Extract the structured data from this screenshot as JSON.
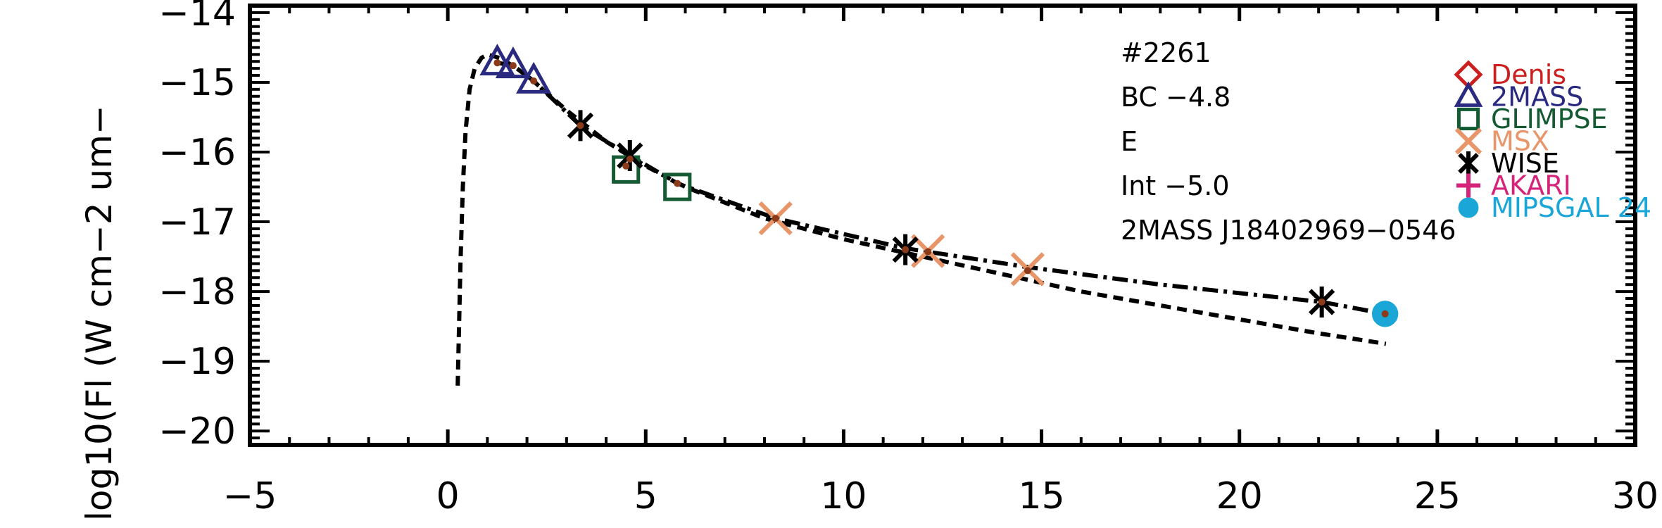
{
  "chart_data": {
    "type": "scatter",
    "title": "",
    "xlabel": "",
    "ylabel": "log10(Fl (W cm−2 um−",
    "xlim": [
      -5,
      30
    ],
    "ylim": [
      -20.2,
      -13.9
    ],
    "x_ticks": [
      -5,
      0,
      5,
      10,
      15,
      20,
      25,
      30
    ],
    "x_tick_labels": [
      "−5",
      "0",
      "5",
      "10",
      "15",
      "20",
      "25",
      "30"
    ],
    "y_ticks": [
      -20,
      -19,
      -18,
      -17,
      -16,
      -15,
      -14
    ],
    "y_tick_labels": [
      "−20",
      "−19",
      "−18",
      "−17",
      "−16",
      "−15",
      "−14"
    ],
    "grid": false,
    "legend_position": "top-right",
    "annotations": [
      "#2261",
      "BC −4.8",
      "E",
      "Int −5.0",
      "2MASS J18402969−0546"
    ],
    "series": [
      {
        "name": "Denis",
        "marker": "diamond",
        "color": "#cc2020",
        "x": [],
        "y": []
      },
      {
        "name": "2MASS",
        "marker": "triangle",
        "color": "#2a2a80",
        "x": [
          1.25,
          1.65,
          2.17
        ],
        "y": [
          -14.72,
          -14.76,
          -14.98
        ]
      },
      {
        "name": "GLIMPSE",
        "marker": "square",
        "color": "#145a32",
        "x": [
          4.5,
          5.8
        ],
        "y": [
          -16.25,
          -16.5
        ]
      },
      {
        "name": "MSX",
        "marker": "x",
        "color": "#e8956a",
        "x": [
          8.28,
          12.13,
          14.65
        ],
        "y": [
          -16.95,
          -17.42,
          -17.68
        ]
      },
      {
        "name": "WISE",
        "marker": "asterisk",
        "color": "#000000",
        "x": [
          3.35,
          4.6,
          11.56,
          22.08
        ],
        "y": [
          -15.62,
          -16.05,
          -17.4,
          -18.15
        ]
      },
      {
        "name": "AKARI",
        "marker": "plus",
        "color": "#d6237a",
        "x": [],
        "y": []
      },
      {
        "name": "MIPSGAL 24",
        "marker": "circle",
        "color": "#1aa6d6",
        "x": [
          23.68
        ],
        "y": [
          -18.32
        ]
      }
    ],
    "points_overlay": {
      "color": "#8b3a1a",
      "x": [
        1.25,
        1.65,
        2.17,
        3.35,
        4.5,
        4.6,
        5.8,
        8.28,
        11.56,
        12.13,
        14.65,
        22.08,
        23.68
      ],
      "y": [
        -14.72,
        -14.76,
        -14.98,
        -15.62,
        -16.2,
        -16.1,
        -16.45,
        -16.95,
        -17.4,
        -17.43,
        -17.7,
        -18.15,
        -18.32
      ]
    },
    "model_curves": [
      {
        "style": "dashed",
        "color": "#000000",
        "x": [
          0.25,
          0.28,
          0.32,
          0.38,
          0.45,
          0.55,
          0.68,
          0.85,
          1.0,
          1.3,
          1.7,
          2.2,
          3.0,
          4.0,
          5.0,
          6.0,
          8.0,
          10.0,
          12.0,
          14.0,
          16.0,
          18.0,
          20.0,
          22.0,
          23.7
        ],
        "y": [
          -19.35,
          -18.6,
          -17.6,
          -16.5,
          -15.7,
          -15.1,
          -14.8,
          -14.65,
          -14.6,
          -14.65,
          -14.78,
          -15.0,
          -15.4,
          -15.85,
          -16.2,
          -16.5,
          -16.95,
          -17.25,
          -17.5,
          -17.75,
          -18.0,
          -18.2,
          -18.4,
          -18.6,
          -18.75
        ]
      },
      {
        "style": "dashdot",
        "color": "#000000",
        "x": [
          1.25,
          1.65,
          2.17,
          3.35,
          4.6,
          5.8,
          8.28,
          11.56,
          14.65,
          18.0,
          22.08,
          23.68
        ],
        "y": [
          -14.72,
          -14.76,
          -14.98,
          -15.62,
          -16.05,
          -16.45,
          -16.95,
          -17.38,
          -17.65,
          -17.9,
          -18.15,
          -18.32
        ]
      }
    ]
  }
}
